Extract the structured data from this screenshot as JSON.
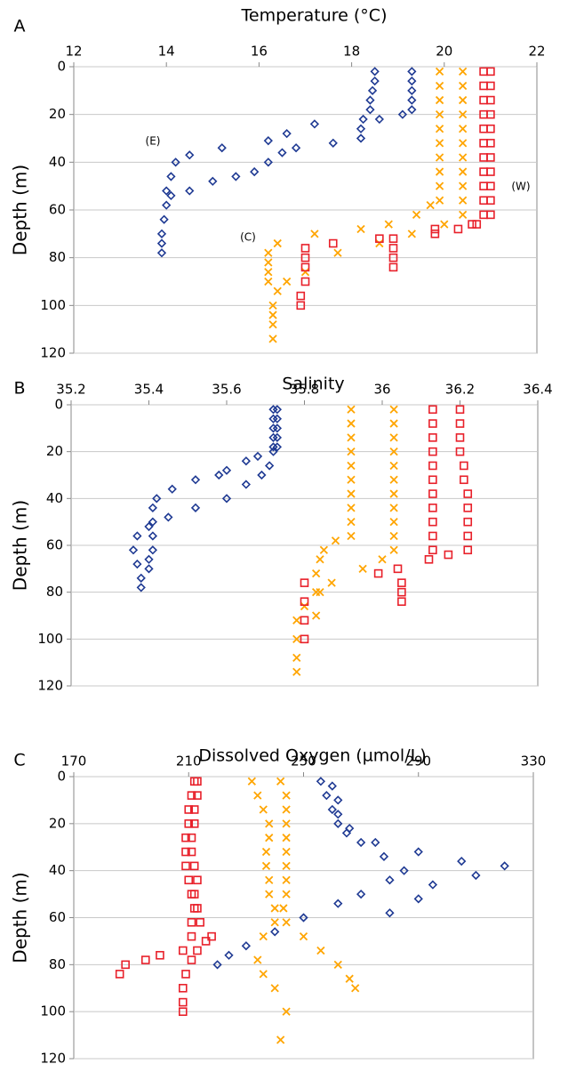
{
  "chart_data": [
    {
      "type": "scatter",
      "panel_label": "A",
      "title": "Temperature (°C)",
      "ylabel": "Depth (m)",
      "xlim": [
        12,
        22
      ],
      "xticks": [
        12,
        14,
        16,
        18,
        20,
        22
      ],
      "ylim": [
        0,
        120
      ],
      "yticks": [
        0,
        20,
        40,
        60,
        80,
        100,
        120
      ],
      "y_inverted": true,
      "x_axis_position": "top",
      "grid": true,
      "annotations": [
        "(E)",
        "(C)",
        "(W)"
      ],
      "series": [
        {
          "color": "#1f3a93",
          "marker": "diamond",
          "x": [
            19.3,
            19.3,
            19.3,
            19.3,
            19.3,
            19.1,
            18.6,
            17.2,
            16.6,
            16.2,
            15.2,
            14.5,
            14.2,
            14.1,
            14.0,
            14.0,
            13.95,
            13.9,
            13.9,
            13.9,
            18.5,
            18.5,
            18.45,
            18.4,
            18.4,
            18.25,
            18.2,
            18.2,
            17.6,
            16.8,
            16.5,
            16.2,
            15.9,
            15.5,
            15.0,
            14.5,
            14.1
          ],
          "y": [
            2,
            6,
            10,
            14,
            18,
            20,
            22,
            24,
            28,
            31,
            34,
            37,
            40,
            46,
            52,
            58,
            64,
            70,
            74,
            78,
            2,
            6,
            10,
            14,
            18,
            22,
            26,
            30,
            32,
            34,
            36,
            40,
            44,
            46,
            48,
            52,
            54
          ]
        },
        {
          "color": "#ffa500",
          "marker": "x",
          "x": [
            19.9,
            19.9,
            19.9,
            19.9,
            19.9,
            19.9,
            19.9,
            19.9,
            19.9,
            19.9,
            19.7,
            19.4,
            18.8,
            18.2,
            17.2,
            16.4,
            16.2,
            16.2,
            16.2,
            16.2,
            20.4,
            20.4,
            20.4,
            20.4,
            20.4,
            20.4,
            20.4,
            20.4,
            20.4,
            20.4,
            20.4,
            20.0,
            19.3,
            18.6,
            17.7,
            17.0,
            16.6,
            16.4,
            16.3,
            16.3,
            16.3,
            16.3
          ],
          "y": [
            2,
            8,
            14,
            20,
            26,
            32,
            38,
            44,
            50,
            56,
            58,
            62,
            66,
            68,
            70,
            74,
            78,
            82,
            86,
            90,
            2,
            8,
            14,
            20,
            26,
            32,
            38,
            44,
            50,
            56,
            62,
            66,
            70,
            74,
            78,
            86,
            90,
            94,
            100,
            104,
            108,
            114
          ]
        },
        {
          "color": "#e8202a",
          "marker": "square",
          "x": [
            20.85,
            20.85,
            20.85,
            20.85,
            20.85,
            20.85,
            20.85,
            20.85,
            20.85,
            20.85,
            20.85,
            20.7,
            20.3,
            19.8,
            18.6,
            17.6,
            17.0,
            17.0,
            17.0,
            17.0,
            16.9,
            16.9,
            21.0,
            21.0,
            21.0,
            21.0,
            21.0,
            21.0,
            21.0,
            21.0,
            21.0,
            21.0,
            21.0,
            20.6,
            19.8,
            18.9,
            18.9,
            18.9,
            18.9
          ],
          "y": [
            2,
            8,
            14,
            20,
            26,
            32,
            38,
            44,
            50,
            56,
            62,
            66,
            68,
            70,
            72,
            74,
            76,
            80,
            84,
            90,
            96,
            100,
            2,
            8,
            14,
            20,
            26,
            32,
            38,
            44,
            50,
            56,
            62,
            66,
            68,
            72,
            76,
            80,
            84
          ]
        }
      ]
    },
    {
      "type": "scatter",
      "panel_label": "B",
      "title": "Salinity",
      "ylabel": "Depth (m)",
      "xlim": [
        35.2,
        36.4
      ],
      "xticks": [
        35.2,
        35.4,
        35.6,
        35.8,
        36,
        36.2,
        36.4
      ],
      "ylim": [
        0,
        120
      ],
      "yticks": [
        0,
        20,
        40,
        60,
        80,
        100,
        120
      ],
      "y_inverted": true,
      "x_axis_position": "top",
      "grid": true,
      "series": [
        {
          "color": "#1f3a93",
          "marker": "diamond",
          "x": [
            35.72,
            35.72,
            35.72,
            35.72,
            35.72,
            35.72,
            35.68,
            35.65,
            35.6,
            35.58,
            35.52,
            35.46,
            35.42,
            35.41,
            35.41,
            35.41,
            35.41,
            35.4,
            35.4,
            35.73,
            35.73,
            35.73,
            35.73,
            35.73,
            35.71,
            35.69,
            35.65,
            35.6,
            35.52,
            35.45,
            35.4,
            35.37,
            35.36,
            35.37,
            35.38,
            35.38
          ],
          "y": [
            2,
            6,
            10,
            14,
            18,
            20,
            22,
            24,
            28,
            30,
            32,
            36,
            40,
            44,
            50,
            56,
            62,
            66,
            70,
            2,
            6,
            10,
            14,
            18,
            26,
            30,
            34,
            40,
            44,
            48,
            52,
            56,
            62,
            68,
            74,
            78
          ]
        },
        {
          "color": "#ffa500",
          "marker": "x",
          "x": [
            35.92,
            35.92,
            35.92,
            35.92,
            35.92,
            35.92,
            35.92,
            35.92,
            35.92,
            35.92,
            35.88,
            35.85,
            35.84,
            35.83,
            35.83,
            35.83,
            36.03,
            36.03,
            36.03,
            36.03,
            36.03,
            36.03,
            36.03,
            36.03,
            36.03,
            36.03,
            36.03,
            36.0,
            35.95,
            35.87,
            35.84,
            35.8,
            35.78,
            35.78,
            35.78,
            35.78
          ],
          "y": [
            2,
            8,
            14,
            20,
            26,
            32,
            38,
            44,
            50,
            56,
            58,
            62,
            66,
            72,
            80,
            90,
            2,
            8,
            14,
            20,
            26,
            32,
            38,
            44,
            50,
            56,
            62,
            66,
            70,
            76,
            80,
            86,
            92,
            100,
            108,
            114
          ]
        },
        {
          "color": "#e8202a",
          "marker": "square",
          "x": [
            36.13,
            36.13,
            36.13,
            36.13,
            36.13,
            36.13,
            36.13,
            36.13,
            36.13,
            36.13,
            36.13,
            36.12,
            35.99,
            35.8,
            35.8,
            35.8,
            35.8,
            36.2,
            36.2,
            36.2,
            36.2,
            36.21,
            36.21,
            36.22,
            36.22,
            36.22,
            36.22,
            36.22,
            36.17,
            36.04,
            36.05,
            36.05,
            36.05
          ],
          "y": [
            2,
            8,
            14,
            20,
            26,
            32,
            38,
            44,
            50,
            56,
            62,
            66,
            72,
            76,
            84,
            92,
            100,
            2,
            8,
            14,
            20,
            26,
            32,
            38,
            44,
            50,
            56,
            62,
            64,
            70,
            76,
            80,
            84
          ]
        }
      ]
    },
    {
      "type": "scatter",
      "panel_label": "C",
      "title": "Dissolved Oxygen (µmol/L)",
      "ylabel": "Depth (m)",
      "xlim": [
        170,
        330
      ],
      "xticks": [
        170,
        210,
        250,
        290,
        330
      ],
      "ylim": [
        0,
        120
      ],
      "yticks": [
        0,
        20,
        40,
        60,
        80,
        100,
        120
      ],
      "y_inverted": true,
      "x_axis_position": "top",
      "grid": true,
      "series": [
        {
          "color": "#1f3a93",
          "marker": "diamond",
          "x": [
            256,
            258,
            260,
            262,
            265,
            275,
            290,
            305,
            320,
            310,
            295,
            290,
            280,
            260,
            262,
            262,
            266,
            270,
            278,
            285,
            280,
            270,
            262,
            250,
            240,
            230,
            224,
            220
          ],
          "y": [
            2,
            8,
            14,
            20,
            24,
            28,
            32,
            36,
            38,
            42,
            46,
            52,
            58,
            4,
            10,
            16,
            22,
            28,
            34,
            40,
            44,
            50,
            54,
            60,
            66,
            72,
            76,
            80
          ]
        },
        {
          "color": "#ffa500",
          "marker": "x",
          "x": [
            232,
            234,
            236,
            238,
            238,
            237,
            237,
            238,
            238,
            240,
            244,
            250,
            256,
            262,
            266,
            268,
            242,
            244,
            244,
            244,
            244,
            244,
            244,
            244,
            244,
            243,
            240,
            236,
            234,
            236,
            240,
            244,
            242
          ],
          "y": [
            2,
            8,
            14,
            20,
            26,
            32,
            38,
            44,
            50,
            56,
            62,
            68,
            74,
            80,
            86,
            90,
            2,
            8,
            14,
            20,
            26,
            32,
            38,
            44,
            50,
            56,
            62,
            68,
            78,
            84,
            90,
            100,
            112
          ]
        },
        {
          "color": "#e8202a",
          "marker": "square",
          "x": [
            212,
            211,
            210,
            210,
            209,
            209,
            209,
            210,
            211,
            212,
            211,
            211,
            208,
            200,
            195,
            188,
            186,
            213,
            213,
            212,
            212,
            211,
            211,
            212,
            213,
            212,
            213,
            214,
            218,
            216,
            213,
            211,
            209,
            208,
            208,
            208
          ],
          "y": [
            2,
            8,
            14,
            20,
            26,
            32,
            38,
            44,
            50,
            56,
            62,
            68,
            74,
            76,
            78,
            80,
            84,
            2,
            8,
            14,
            20,
            26,
            32,
            38,
            44,
            50,
            56,
            62,
            68,
            70,
            74,
            78,
            84,
            90,
            96,
            100
          ]
        }
      ]
    }
  ]
}
